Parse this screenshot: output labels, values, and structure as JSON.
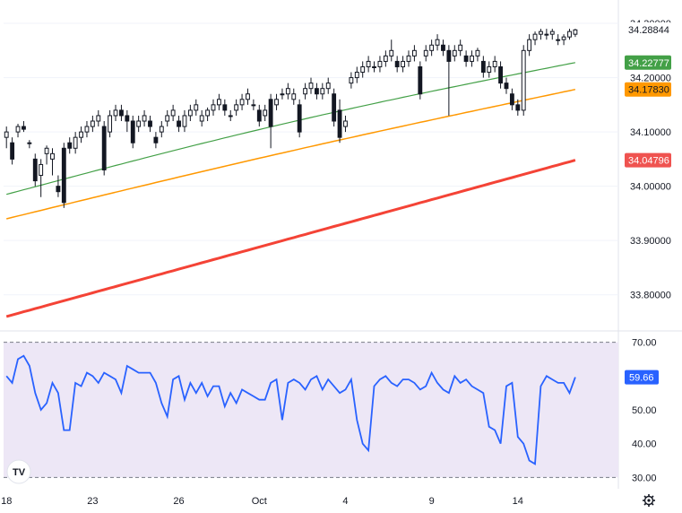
{
  "chart_data": [
    {
      "type": "candlestick",
      "panel": "price",
      "price_axis": {
        "ticks": [
          "34.30000",
          "34.20000",
          "34.10000",
          "34.00000",
          "33.90000",
          "33.80000"
        ],
        "range": [
          33.745,
          34.31
        ]
      },
      "tags": [
        {
          "label": "34.28844",
          "color": "#ffffff",
          "text_color": "#131722",
          "value": 34.28844
        },
        {
          "label": "34.22777",
          "color": "#43a047",
          "text_color": "#ffffff",
          "value": 34.22777
        },
        {
          "label": "34.17830",
          "color": "#ff9800",
          "text_color": "#131722",
          "value": 34.1783
        },
        {
          "label": "34.04796",
          "color": "#ef5350",
          "text_color": "#ffffff",
          "value": 34.04796
        }
      ],
      "ma_green": {
        "color": "#43a047",
        "start": 33.985,
        "end": 34.2278
      },
      "ma_orange": {
        "color": "#ff9800",
        "start": 33.94,
        "end": 34.1783
      },
      "ma_red": {
        "color": "#f44336",
        "start": 33.76,
        "end": 34.048
      },
      "candle_count": 100,
      "candles_ohlc": [
        [
          34.09,
          34.11,
          34.07,
          34.1
        ],
        [
          34.08,
          34.09,
          34.04,
          34.05
        ],
        [
          34.1,
          34.115,
          34.09,
          34.11
        ],
        [
          34.11,
          34.12,
          34.1,
          34.105
        ],
        [
          34.08,
          34.085,
          34.07,
          34.08
        ],
        [
          34.05,
          34.06,
          34.0,
          34.01
        ],
        [
          34.02,
          34.05,
          33.98,
          34.04
        ],
        [
          34.06,
          34.075,
          34.04,
          34.07
        ],
        [
          34.05,
          34.07,
          34.02,
          34.06
        ],
        [
          34.0,
          34.02,
          33.98,
          33.99
        ],
        [
          34.07,
          34.08,
          33.96,
          33.97
        ],
        [
          34.08,
          34.09,
          34.06,
          34.07
        ],
        [
          34.07,
          34.1,
          34.06,
          34.09
        ],
        [
          34.09,
          34.11,
          34.08,
          34.1
        ],
        [
          34.1,
          34.12,
          34.09,
          34.11
        ],
        [
          34.11,
          34.13,
          34.1,
          34.12
        ],
        [
          34.12,
          34.14,
          34.11,
          34.13
        ],
        [
          34.11,
          34.12,
          34.02,
          34.03
        ],
        [
          34.1,
          34.14,
          34.09,
          34.13
        ],
        [
          34.13,
          34.15,
          34.12,
          34.14
        ],
        [
          34.14,
          34.15,
          34.12,
          34.13
        ],
        [
          34.13,
          34.14,
          34.1,
          34.12
        ],
        [
          34.12,
          34.13,
          34.07,
          34.08
        ],
        [
          34.11,
          34.13,
          34.1,
          34.12
        ],
        [
          34.12,
          34.14,
          34.11,
          34.13
        ],
        [
          34.12,
          34.13,
          34.1,
          34.11
        ],
        [
          34.09,
          34.1,
          34.07,
          34.08
        ],
        [
          34.1,
          34.12,
          34.09,
          34.11
        ],
        [
          34.12,
          34.14,
          34.11,
          34.13
        ],
        [
          34.13,
          34.15,
          34.12,
          34.14
        ],
        [
          34.12,
          34.13,
          34.1,
          34.11
        ],
        [
          34.11,
          34.14,
          34.1,
          34.13
        ],
        [
          34.13,
          34.15,
          34.12,
          34.14
        ],
        [
          34.14,
          34.16,
          34.13,
          34.15
        ],
        [
          34.12,
          34.14,
          34.11,
          34.13
        ],
        [
          34.13,
          34.145,
          34.12,
          34.14
        ],
        [
          34.14,
          34.16,
          34.13,
          34.15
        ],
        [
          34.15,
          34.17,
          34.14,
          34.16
        ],
        [
          34.15,
          34.16,
          34.13,
          34.14
        ],
        [
          34.13,
          34.14,
          34.12,
          34.13
        ],
        [
          34.14,
          34.16,
          34.13,
          34.15
        ],
        [
          34.15,
          34.17,
          34.14,
          34.16
        ],
        [
          34.16,
          34.18,
          34.15,
          34.17
        ],
        [
          34.15,
          34.16,
          34.14,
          34.15
        ],
        [
          34.14,
          34.15,
          34.11,
          34.12
        ],
        [
          34.13,
          34.15,
          34.12,
          34.14
        ],
        [
          34.16,
          34.17,
          34.07,
          34.11
        ],
        [
          34.15,
          34.17,
          34.14,
          34.16
        ],
        [
          34.17,
          34.18,
          34.16,
          34.17
        ],
        [
          34.17,
          34.19,
          34.16,
          34.18
        ],
        [
          34.16,
          34.18,
          34.15,
          34.17
        ],
        [
          34.15,
          34.16,
          34.09,
          34.1
        ],
        [
          34.17,
          34.19,
          34.16,
          34.18
        ],
        [
          34.18,
          34.2,
          34.17,
          34.19
        ],
        [
          34.18,
          34.19,
          34.16,
          34.17
        ],
        [
          34.17,
          34.19,
          34.16,
          34.18
        ],
        [
          34.18,
          34.2,
          34.17,
          34.19
        ],
        [
          34.17,
          34.18,
          34.11,
          34.12
        ],
        [
          34.14,
          34.16,
          34.08,
          34.09
        ],
        [
          34.11,
          34.13,
          34.1,
          34.12
        ],
        [
          34.19,
          34.21,
          34.18,
          34.2
        ],
        [
          34.2,
          34.22,
          34.19,
          34.21
        ],
        [
          34.21,
          34.23,
          34.2,
          34.22
        ],
        [
          34.22,
          34.24,
          34.21,
          34.23
        ],
        [
          34.22,
          34.23,
          34.21,
          34.22
        ],
        [
          34.22,
          34.24,
          34.21,
          34.23
        ],
        [
          34.23,
          34.25,
          34.22,
          34.24
        ],
        [
          34.24,
          34.27,
          34.23,
          34.25
        ],
        [
          34.23,
          34.24,
          34.21,
          34.22
        ],
        [
          34.22,
          34.24,
          34.21,
          34.23
        ],
        [
          34.23,
          34.25,
          34.22,
          34.24
        ],
        [
          34.24,
          34.26,
          34.23,
          34.25
        ],
        [
          34.22,
          34.23,
          34.16,
          34.17
        ],
        [
          34.24,
          34.26,
          34.23,
          34.25
        ],
        [
          34.25,
          34.27,
          34.24,
          34.26
        ],
        [
          34.26,
          34.28,
          34.25,
          34.27
        ],
        [
          34.26,
          34.27,
          34.24,
          34.25
        ],
        [
          34.25,
          34.26,
          34.13,
          34.23
        ],
        [
          34.24,
          34.26,
          34.23,
          34.25
        ],
        [
          34.25,
          34.27,
          34.24,
          34.26
        ],
        [
          34.24,
          34.25,
          34.22,
          34.23
        ],
        [
          34.23,
          34.25,
          34.22,
          34.24
        ],
        [
          34.24,
          34.255,
          34.23,
          34.25
        ],
        [
          34.23,
          34.24,
          34.2,
          34.21
        ],
        [
          34.21,
          34.23,
          34.2,
          34.22
        ],
        [
          34.22,
          34.24,
          34.21,
          34.23
        ],
        [
          34.22,
          34.23,
          34.18,
          34.19
        ],
        [
          34.19,
          34.2,
          34.17,
          34.18
        ],
        [
          34.17,
          34.18,
          34.14,
          34.15
        ],
        [
          34.15,
          34.16,
          34.13,
          34.14
        ],
        [
          34.14,
          34.26,
          34.13,
          34.25
        ],
        [
          34.25,
          34.28,
          34.24,
          34.27
        ],
        [
          34.27,
          34.285,
          34.26,
          34.28
        ],
        [
          34.28,
          34.29,
          34.27,
          34.285
        ],
        [
          34.28,
          34.29,
          34.27,
          34.28
        ],
        [
          34.28,
          34.29,
          34.27,
          34.285
        ],
        [
          34.27,
          34.28,
          34.26,
          34.27
        ],
        [
          34.27,
          34.28,
          34.26,
          34.275
        ],
        [
          34.275,
          34.29,
          34.27,
          34.285
        ],
        [
          34.28,
          34.29,
          34.275,
          34.288
        ]
      ]
    },
    {
      "type": "line",
      "panel": "oscillator",
      "axis": {
        "ticks": [
          "70.00",
          "60.00",
          "50.00",
          "40.00",
          "30.00"
        ],
        "range": [
          28.5,
          71.5
        ]
      },
      "band": {
        "upper": 70,
        "lower": 30,
        "fill": "#ede7f6"
      },
      "last_value_label": "59.66",
      "color": "#2962ff",
      "values": [
        60,
        58,
        65,
        66,
        63,
        55,
        50,
        52,
        58,
        55,
        44,
        44,
        58,
        57,
        61,
        60,
        58,
        61,
        60,
        59,
        55,
        63,
        62,
        61,
        61,
        61,
        58,
        52,
        48,
        59,
        60,
        53,
        58,
        55,
        58,
        54,
        57,
        57,
        51,
        55,
        52,
        56,
        55,
        54,
        53,
        53,
        58,
        59,
        47,
        58,
        59,
        58,
        56,
        59,
        60,
        56,
        59,
        57,
        55,
        56,
        59,
        47,
        40,
        38,
        57,
        59,
        60,
        58,
        57,
        59,
        59,
        58,
        56,
        57,
        61,
        58,
        56,
        55,
        60,
        58,
        59,
        57,
        56,
        55,
        45,
        44,
        40,
        57,
        58,
        42,
        40,
        35,
        34,
        57,
        60,
        59,
        58,
        58,
        55,
        59.66
      ]
    }
  ],
  "x_axis": {
    "labels": [
      {
        "text": "18",
        "index": 0
      },
      {
        "text": "23",
        "index": 15
      },
      {
        "text": "26",
        "index": 30
      },
      {
        "text": "Oct",
        "index": 44
      },
      {
        "text": "4",
        "index": 59
      },
      {
        "text": "9",
        "index": 74
      },
      {
        "text": "14",
        "index": 89
      }
    ]
  },
  "colors": {
    "candle_up": "#ffffff",
    "candle_down": "#131722",
    "wick": "#131722",
    "grid": "#f0f3fa",
    "separator": "#e0e3eb"
  },
  "logo": {
    "text": "TV"
  },
  "settings_icon": "gear-icon"
}
